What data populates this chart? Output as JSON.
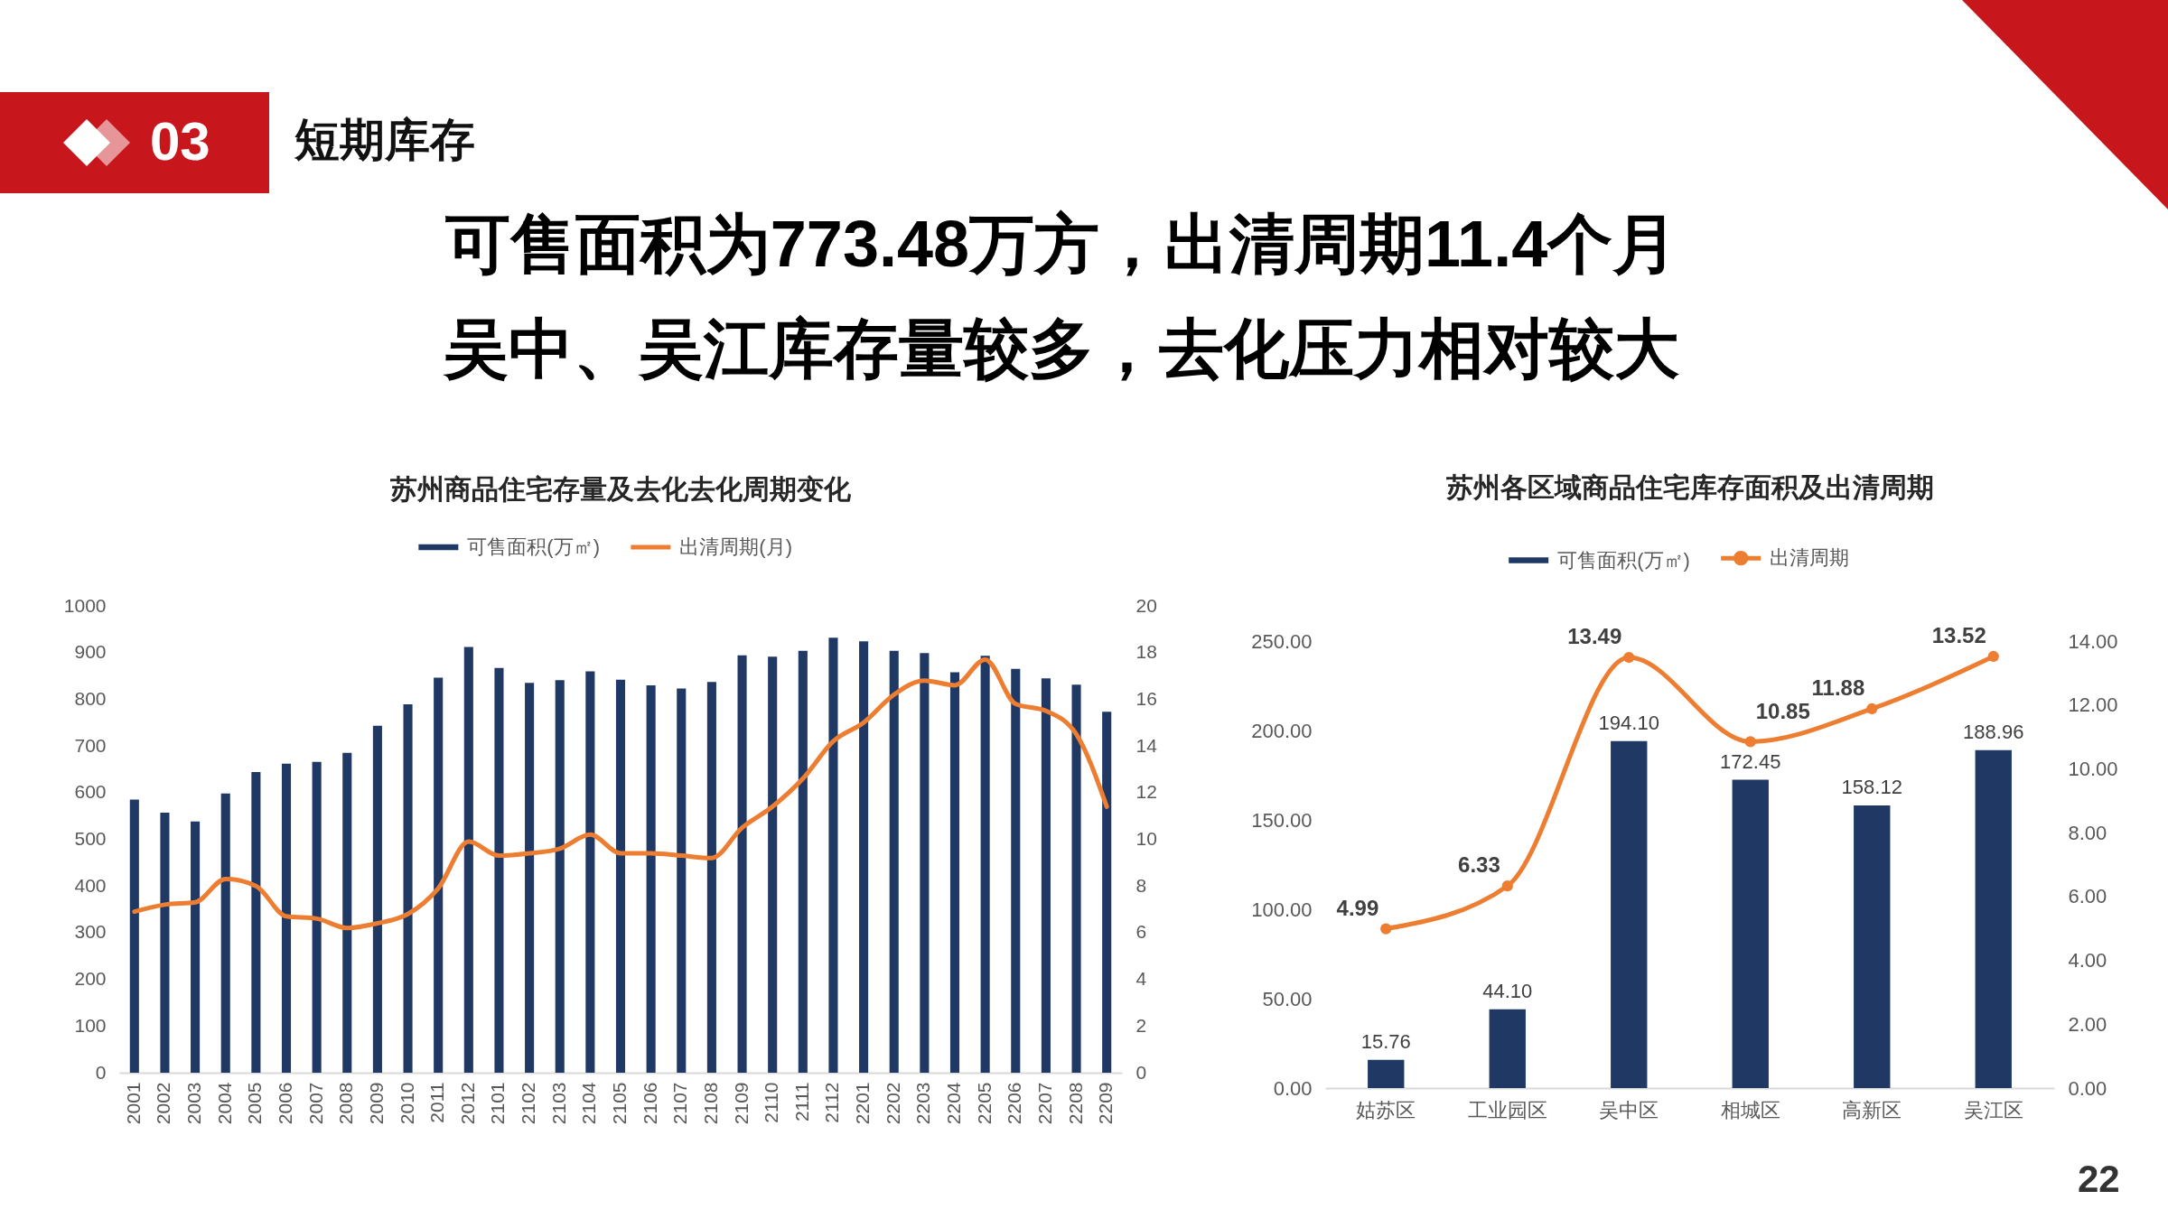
{
  "chart_data": [
    {
      "type": "other",
      "title": "可售面积为773.48万方，出清周期11.4个月",
      "subtitle": "吴中、吴江库存量较多，去化压力相对较大",
      "annotations": [
        "03",
        "短期库存",
        "22"
      ]
    },
    {
      "type": "bar",
      "title": "苏州商品住宅存量及去化去化周期变化",
      "categories": [
        "2001",
        "2002",
        "2003",
        "2004",
        "2005",
        "2006",
        "2007",
        "2008",
        "2009",
        "2010",
        "2011",
        "2012",
        "2101",
        "2102",
        "2103",
        "2104",
        "2105",
        "2106",
        "2107",
        "2108",
        "2109",
        "2110",
        "2111",
        "2112",
        "2201",
        "2202",
        "2203",
        "2204",
        "2205",
        "2206",
        "2207",
        "2208",
        "2209"
      ],
      "series": [
        {
          "name": "可售面积(万㎡)",
          "type": "bar",
          "color": "#203864",
          "values": [
            585,
            557,
            538,
            598,
            644,
            662,
            666,
            685,
            743,
            789,
            846,
            912,
            867,
            835,
            841,
            860,
            842,
            830,
            823,
            837,
            894,
            891,
            904,
            932,
            924,
            904,
            899,
            858,
            893,
            865,
            845,
            831,
            773
          ]
        },
        {
          "name": "出清周期(月)",
          "type": "line",
          "axis": "y2",
          "color": "#ed7d31",
          "values": [
            6.9,
            7.2,
            7.3,
            8.3,
            8.0,
            6.7,
            6.6,
            6.2,
            6.4,
            6.8,
            7.9,
            9.9,
            9.3,
            9.4,
            9.6,
            10.2,
            9.4,
            9.4,
            9.3,
            9.2,
            10.5,
            11.4,
            12.6,
            14.2,
            15.0,
            16.2,
            16.8,
            16.6,
            17.7,
            15.8,
            15.5,
            14.5,
            11.4
          ]
        }
      ],
      "ylim": [
        0,
        1000
      ],
      "yticks": [
        0,
        100,
        200,
        300,
        400,
        500,
        600,
        700,
        800,
        900,
        1000
      ],
      "y2lim": [
        0,
        20
      ],
      "y2ticks": [
        0,
        2,
        4,
        6,
        8,
        10,
        12,
        14,
        16,
        18,
        20
      ],
      "legend": "top",
      "line_style": "solid"
    },
    {
      "type": "bar",
      "title": "苏州各区域商品住宅库存面积及出清周期",
      "categories": [
        "姑苏区",
        "工业园区",
        "吴中区",
        "相城区",
        "高新区",
        "吴江区"
      ],
      "series": [
        {
          "name": "可售面积(万㎡)",
          "type": "bar",
          "color": "#203864",
          "values": [
            15.76,
            44.1,
            194.1,
            172.45,
            158.12,
            188.96
          ],
          "value_labels": [
            "15.76",
            "44.10",
            "194.10",
            "172.45",
            "158.12",
            "188.96"
          ]
        },
        {
          "name": "出清周期",
          "type": "line",
          "axis": "y2",
          "color": "#ed7d31",
          "marker": "circle",
          "values": [
            4.99,
            6.33,
            13.49,
            10.85,
            11.88,
            13.52
          ],
          "value_labels": [
            "4.99",
            "6.33",
            "13.49",
            "10.85",
            "11.88",
            "13.52"
          ]
        }
      ],
      "ylim": [
        0,
        250
      ],
      "yticks": [
        {
          "value": 0,
          "label": "0.00"
        },
        {
          "value": 50,
          "label": "50.00"
        },
        {
          "value": 100,
          "label": "100.00"
        },
        {
          "value": 150,
          "label": "150.00"
        },
        {
          "value": 200,
          "label": "200.00"
        },
        {
          "value": 250,
          "label": "250.00"
        }
      ],
      "y2lim": [
        0,
        14
      ],
      "y2ticks": [
        {
          "value": 0,
          "label": "0.00"
        },
        {
          "value": 2,
          "label": "2.00"
        },
        {
          "value": 4,
          "label": "4.00"
        },
        {
          "value": 6,
          "label": "6.00"
        },
        {
          "value": 8,
          "label": "8.00"
        },
        {
          "value": 10,
          "label": "10.00"
        },
        {
          "value": 12,
          "label": "12.00"
        },
        {
          "value": 14,
          "label": "14.00"
        }
      ],
      "legend": "top",
      "line_style": "solid"
    }
  ]
}
